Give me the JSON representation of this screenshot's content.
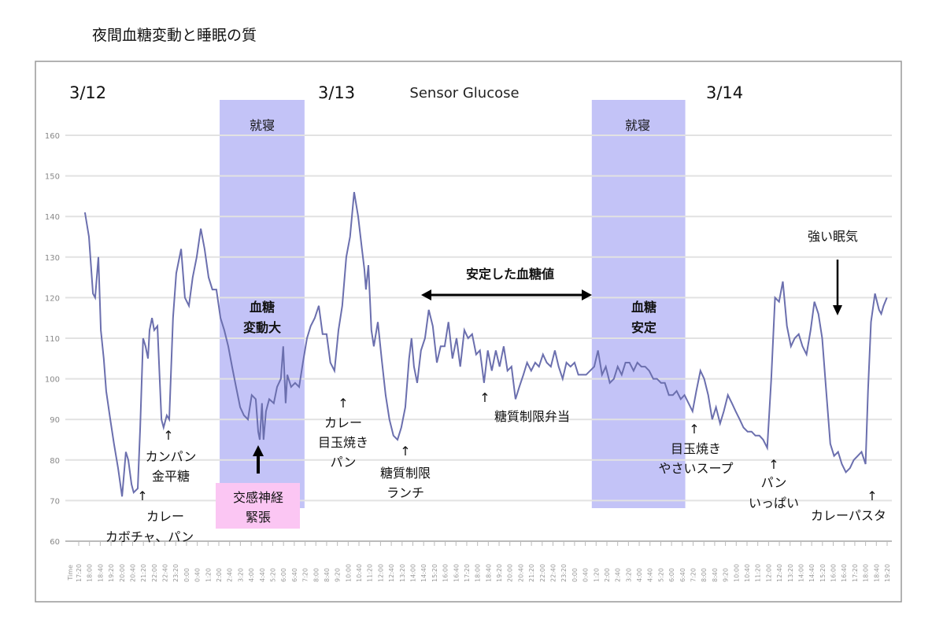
{
  "page": {
    "title": "夜間血糖変動と睡眠の質"
  },
  "chart_data": {
    "type": "line",
    "title": "Sensor Glucose",
    "xlabel": "Time",
    "ylabel": "",
    "x_unit": "minutes since 3/12 17:20",
    "xlim": [
      0,
      3000
    ],
    "ylim": [
      60,
      160
    ],
    "yticks": [
      60,
      70,
      80,
      90,
      100,
      110,
      120,
      130,
      140,
      150,
      160
    ],
    "grid": true,
    "xtick_labels": [
      "17:20",
      "18:00",
      "18:40",
      "19:20",
      "20:00",
      "20:40",
      "21:20",
      "22:00",
      "22:40",
      "23:20",
      "0:00",
      "0:40",
      "1:20",
      "2:00",
      "2:40",
      "3:20",
      "4:00",
      "4:40",
      "5:20",
      "6:00",
      "6:40",
      "7:20",
      "8:00",
      "8:40",
      "9:20",
      "10:00",
      "10:40",
      "11:20",
      "12:00",
      "12:40",
      "13:20",
      "14:00",
      "14:40",
      "15:20",
      "16:00",
      "16:40",
      "17:20",
      "18:00",
      "18:40",
      "19:20",
      "20:00",
      "20:40",
      "21:20",
      "22:00",
      "22:40",
      "23:20",
      "0:00",
      "0:40",
      "1:20",
      "2:00",
      "2:40",
      "3:20",
      "4:00",
      "4:40",
      "5:20",
      "6:00",
      "6:40",
      "7:20",
      "8:00",
      "8:40",
      "9:20",
      "10:00",
      "10:40",
      "11:20",
      "12:00",
      "12:40",
      "13:20",
      "14:00",
      "14:40",
      "15:20",
      "16:00",
      "16:40",
      "17:20",
      "18:00",
      "18:40",
      "19:20"
    ],
    "series": [
      {
        "name": "Sensor Glucose",
        "color": "#6b6fae",
        "points": [
          [
            23,
            141
          ],
          [
            38,
            135
          ],
          [
            53,
            121
          ],
          [
            61,
            120
          ],
          [
            73,
            130
          ],
          [
            82,
            112
          ],
          [
            93,
            105
          ],
          [
            102,
            97
          ],
          [
            117,
            90
          ],
          [
            131,
            84
          ],
          [
            146,
            78
          ],
          [
            161,
            71
          ],
          [
            175,
            82
          ],
          [
            184,
            80
          ],
          [
            196,
            74
          ],
          [
            204,
            72
          ],
          [
            219,
            73
          ],
          [
            228,
            88
          ],
          [
            239,
            110
          ],
          [
            248,
            108
          ],
          [
            257,
            105
          ],
          [
            263,
            112
          ],
          [
            272,
            115
          ],
          [
            280,
            112
          ],
          [
            292,
            113
          ],
          [
            307,
            90
          ],
          [
            315,
            88
          ],
          [
            327,
            91
          ],
          [
            336,
            90
          ],
          [
            350,
            115
          ],
          [
            362,
            126
          ],
          [
            380,
            132
          ],
          [
            394,
            120
          ],
          [
            409,
            118
          ],
          [
            423,
            125
          ],
          [
            438,
            130
          ],
          [
            453,
            137
          ],
          [
            467,
            132
          ],
          [
            482,
            125
          ],
          [
            496,
            122
          ],
          [
            511,
            122
          ],
          [
            526,
            115
          ],
          [
            540,
            112
          ],
          [
            555,
            108
          ],
          [
            569,
            103
          ],
          [
            584,
            98
          ],
          [
            599,
            93
          ],
          [
            613,
            91
          ],
          [
            628,
            90
          ],
          [
            642,
            96
          ],
          [
            657,
            95
          ],
          [
            666,
            87
          ],
          [
            672,
            85
          ],
          [
            680,
            94
          ],
          [
            686,
            85
          ],
          [
            695,
            92
          ],
          [
            707,
            95
          ],
          [
            724,
            94
          ],
          [
            736,
            98
          ],
          [
            750,
            100
          ],
          [
            759,
            108
          ],
          [
            768,
            94
          ],
          [
            774,
            101
          ],
          [
            788,
            98
          ],
          [
            803,
            99
          ],
          [
            818,
            98
          ],
          [
            832,
            104
          ],
          [
            847,
            110
          ],
          [
            861,
            113
          ],
          [
            876,
            115
          ],
          [
            891,
            118
          ],
          [
            905,
            111
          ],
          [
            920,
            111
          ],
          [
            934,
            104
          ],
          [
            949,
            102
          ],
          [
            964,
            112
          ],
          [
            978,
            118
          ],
          [
            993,
            130
          ],
          [
            1007,
            135
          ],
          [
            1022,
            146
          ],
          [
            1037,
            140
          ],
          [
            1051,
            132
          ],
          [
            1060,
            127
          ],
          [
            1066,
            122
          ],
          [
            1075,
            128
          ],
          [
            1086,
            112
          ],
          [
            1095,
            108
          ],
          [
            1110,
            114
          ],
          [
            1124,
            105
          ],
          [
            1139,
            96
          ],
          [
            1153,
            90
          ],
          [
            1168,
            86
          ],
          [
            1183,
            85
          ],
          [
            1197,
            88
          ],
          [
            1212,
            93
          ],
          [
            1226,
            105
          ],
          [
            1235,
            110
          ],
          [
            1244,
            103
          ],
          [
            1256,
            99
          ],
          [
            1270,
            107
          ],
          [
            1285,
            110
          ],
          [
            1299,
            117
          ],
          [
            1314,
            113
          ],
          [
            1329,
            104
          ],
          [
            1343,
            108
          ],
          [
            1358,
            108
          ],
          [
            1372,
            114
          ],
          [
            1387,
            105
          ],
          [
            1402,
            110
          ],
          [
            1416,
            103
          ],
          [
            1431,
            112
          ],
          [
            1445,
            110
          ],
          [
            1460,
            111
          ],
          [
            1475,
            106
          ],
          [
            1489,
            107
          ],
          [
            1504,
            99
          ],
          [
            1518,
            107
          ],
          [
            1533,
            102
          ],
          [
            1548,
            107
          ],
          [
            1562,
            103
          ],
          [
            1577,
            108
          ],
          [
            1591,
            102
          ],
          [
            1606,
            103
          ],
          [
            1621,
            95
          ],
          [
            1635,
            98
          ],
          [
            1650,
            101
          ],
          [
            1664,
            104
          ],
          [
            1679,
            102
          ],
          [
            1694,
            104
          ],
          [
            1708,
            103
          ],
          [
            1723,
            106
          ],
          [
            1737,
            104
          ],
          [
            1752,
            103
          ],
          [
            1767,
            107
          ],
          [
            1781,
            103
          ],
          [
            1796,
            100
          ],
          [
            1810,
            104
          ],
          [
            1825,
            103
          ],
          [
            1840,
            104
          ],
          [
            1854,
            101
          ],
          [
            1869,
            101
          ],
          [
            1883,
            101
          ],
          [
            1898,
            102
          ],
          [
            1913,
            103
          ],
          [
            1927,
            107
          ],
          [
            1942,
            101
          ],
          [
            1956,
            103
          ],
          [
            1971,
            99
          ],
          [
            1986,
            100
          ],
          [
            2000,
            103
          ],
          [
            2015,
            101
          ],
          [
            2029,
            104
          ],
          [
            2044,
            104
          ],
          [
            2059,
            102
          ],
          [
            2073,
            104
          ],
          [
            2088,
            103
          ],
          [
            2102,
            103
          ],
          [
            2117,
            102
          ],
          [
            2132,
            100
          ],
          [
            2146,
            100
          ],
          [
            2161,
            99
          ],
          [
            2175,
            99
          ],
          [
            2190,
            96
          ],
          [
            2205,
            96
          ],
          [
            2219,
            97
          ],
          [
            2234,
            95
          ],
          [
            2248,
            96
          ],
          [
            2263,
            94
          ],
          [
            2278,
            92
          ],
          [
            2292,
            97
          ],
          [
            2307,
            102
          ],
          [
            2321,
            100
          ],
          [
            2336,
            96
          ],
          [
            2351,
            90
          ],
          [
            2365,
            93
          ],
          [
            2380,
            89
          ],
          [
            2394,
            92
          ],
          [
            2409,
            96
          ],
          [
            2424,
            94
          ],
          [
            2438,
            92
          ],
          [
            2453,
            90
          ],
          [
            2467,
            88
          ],
          [
            2482,
            87
          ],
          [
            2497,
            87
          ],
          [
            2511,
            86
          ],
          [
            2526,
            86
          ],
          [
            2540,
            85
          ],
          [
            2555,
            83
          ],
          [
            2570,
            100
          ],
          [
            2584,
            120
          ],
          [
            2599,
            119
          ],
          [
            2613,
            124
          ],
          [
            2628,
            113
          ],
          [
            2643,
            108
          ],
          [
            2657,
            110
          ],
          [
            2672,
            111
          ],
          [
            2686,
            108
          ],
          [
            2701,
            106
          ],
          [
            2716,
            112
          ],
          [
            2730,
            119
          ],
          [
            2745,
            116
          ],
          [
            2759,
            110
          ],
          [
            2774,
            97
          ],
          [
            2789,
            84
          ],
          [
            2803,
            81
          ],
          [
            2818,
            82
          ],
          [
            2832,
            79
          ],
          [
            2847,
            77
          ],
          [
            2862,
            78
          ],
          [
            2876,
            80
          ],
          [
            2891,
            81
          ],
          [
            2905,
            82
          ],
          [
            2920,
            79
          ],
          [
            2929,
            97
          ],
          [
            2940,
            114
          ],
          [
            2955,
            121
          ],
          [
            2970,
            117
          ],
          [
            2978,
            116
          ],
          [
            2987,
            118
          ],
          [
            2999,
            120
          ]
        ]
      }
    ],
    "bands": [
      {
        "label": "就寝",
        "x_start": 523,
        "x_end": 838,
        "color": "#c3c3f7"
      },
      {
        "label": "就寝",
        "x_start": 1904,
        "x_end": 2251,
        "color": "#c3c3f7"
      }
    ],
    "day_labels": [
      "3/12",
      "3/13",
      "3/14"
    ],
    "annotations": {
      "a1": {
        "arrow": "↑",
        "lines": [
          "カレー",
          "カボチャ、パン"
        ]
      },
      "a2": {
        "arrow": "↑",
        "lines": [
          "カンパン",
          "金平糖"
        ]
      },
      "a3": {
        "arrow": "↑",
        "lines": [
          "カレー",
          "目玉焼き",
          "パン"
        ]
      },
      "a4": {
        "arrow": "↑",
        "lines": [
          "糖質制限",
          "ランチ"
        ]
      },
      "a5": {
        "arrow": "↑",
        "lines": [
          "糖質制限弁当"
        ]
      },
      "a6": {
        "arrow": "↑",
        "lines": [
          "目玉焼き",
          "やさいスープ"
        ]
      },
      "a7": {
        "arrow": "↑",
        "lines": [
          "パン",
          "いっぱい"
        ]
      },
      "a8": {
        "arrow": "↑",
        "lines": [
          "カレーパスタ"
        ]
      },
      "night1": [
        "血糖",
        "変動大"
      ],
      "night2": [
        "血糖",
        "安定"
      ],
      "stable": "安定した血糖値",
      "sympathetic": [
        "交感神経",
        "緊張"
      ],
      "sleepy": "強い眠気"
    }
  }
}
